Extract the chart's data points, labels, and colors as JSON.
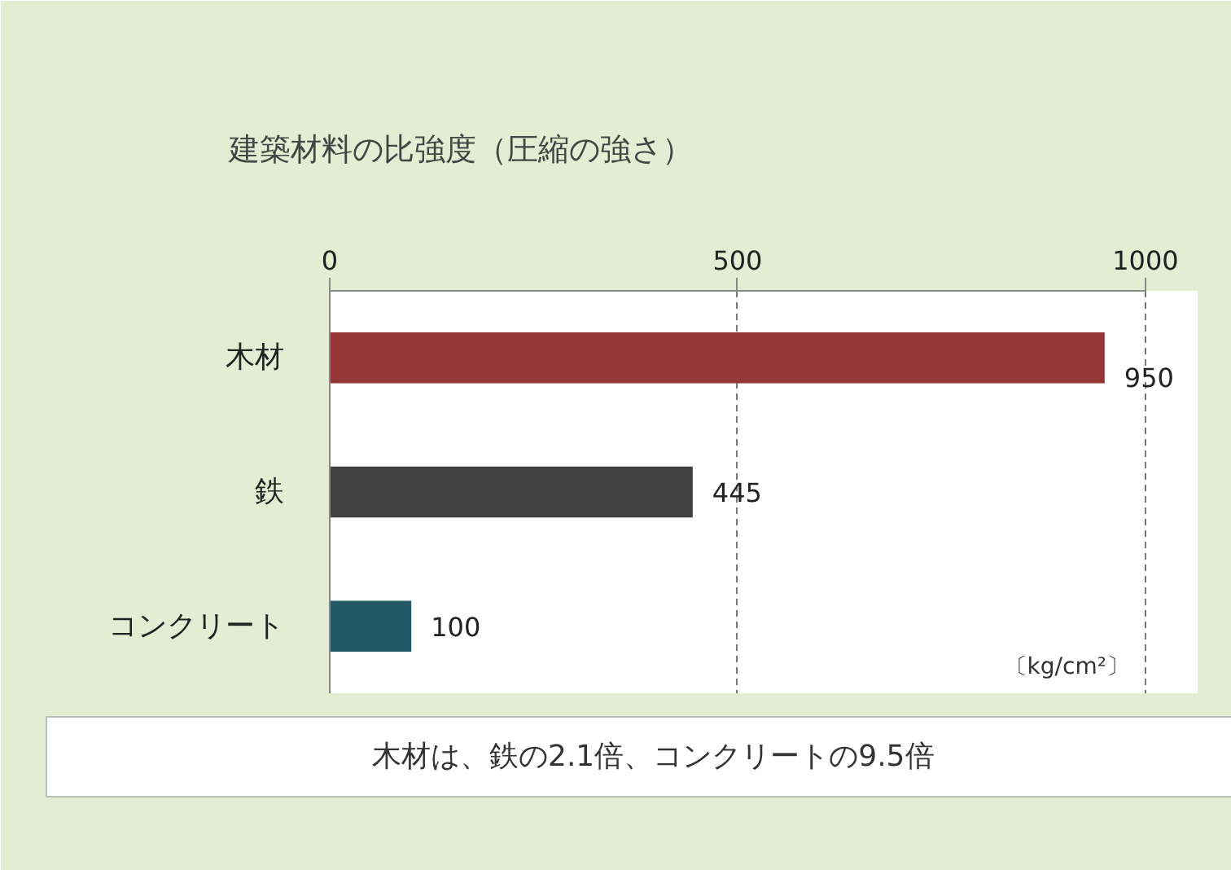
{
  "chart_data": {
    "type": "bar",
    "orientation": "horizontal",
    "title": "建築材料の比強度（圧縮の強さ）",
    "categories": [
      "木材",
      "鉄",
      "コンクリート"
    ],
    "values": [
      950,
      445,
      100
    ],
    "colors": [
      "#943634",
      "#404040",
      "#215967"
    ],
    "xlim": [
      0,
      1000
    ],
    "xticks": [
      0,
      500,
      1000
    ],
    "grid": "x",
    "data_labels": true,
    "xlabel": "〔kg/cm²〕",
    "annotations": [
      "木材は、鉄の2.1倍、コンクリートの9.5倍"
    ]
  }
}
